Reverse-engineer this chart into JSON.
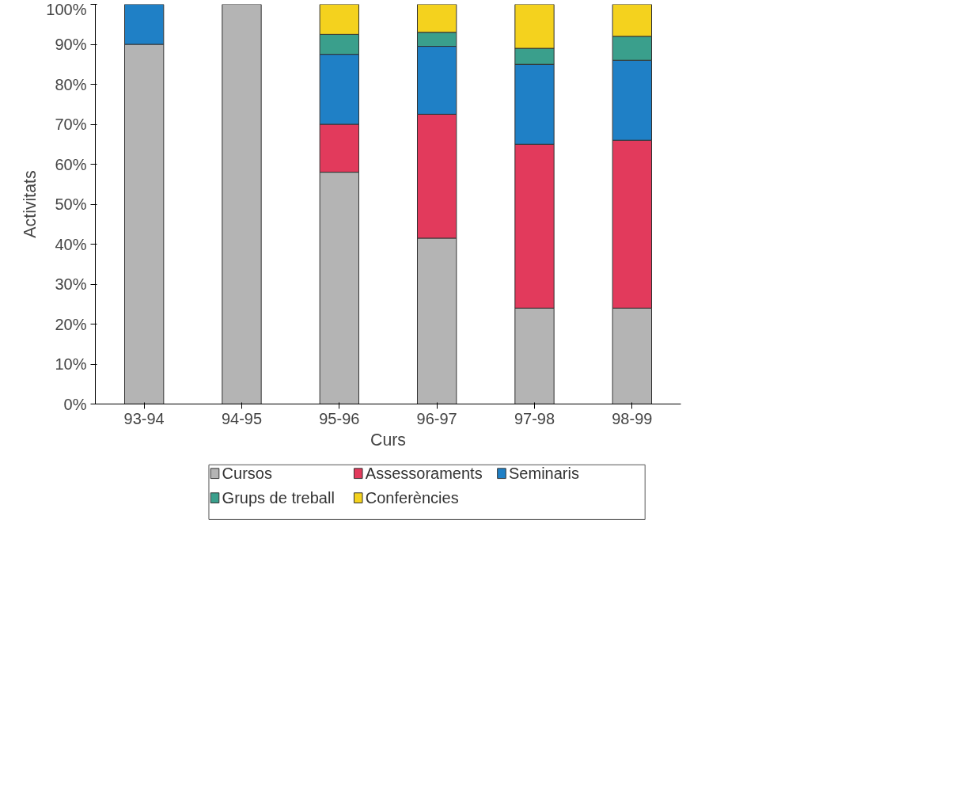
{
  "chart_data": {
    "type": "bar",
    "stacked": true,
    "xlabel": "Curs",
    "ylabel": "Activitats",
    "categories": [
      "93-94",
      "94-95",
      "95-96",
      "96-97",
      "97-98",
      "98-99"
    ],
    "series": [
      {
        "name": "Cursos",
        "color": "#b4b4b4",
        "values": [
          0.9,
          1,
          0.58,
          0.415,
          0.24,
          0.24
        ]
      },
      {
        "name": "Assessoraments",
        "color": "#e23a5c",
        "values": [
          null,
          null,
          0.12,
          0.31,
          0.41,
          0.42
        ]
      },
      {
        "name": "Seminaris",
        "color": "#1f80c6",
        "values": [
          0.1,
          null,
          0.175,
          0.17,
          0.2,
          0.2
        ]
      },
      {
        "name": "Grups de treball",
        "color": "#3a9f8c",
        "values": [
          null,
          null,
          0.05,
          0.035,
          0.04,
          0.06
        ]
      },
      {
        "name": "Conferències",
        "color": "#f4d21e",
        "values": [
          null,
          null,
          0.075,
          0.07,
          0.11,
          0.08
        ]
      }
    ],
    "ylim": [
      0,
      1
    ],
    "yticks": [
      {
        "value": 0,
        "label": "0%"
      },
      {
        "value": 0.1,
        "label": "10%"
      },
      {
        "value": 0.2,
        "label": "20%"
      },
      {
        "value": 0.3,
        "label": "30%"
      },
      {
        "value": 0.4,
        "label": "40%"
      },
      {
        "value": 0.5,
        "label": "50%"
      },
      {
        "value": 0.6,
        "label": "60%"
      },
      {
        "value": 0.7,
        "label": "70%"
      },
      {
        "value": 0.8,
        "label": "80%"
      },
      {
        "value": 0.9,
        "label": "90%"
      },
      {
        "value": 1,
        "label": "100%"
      }
    ],
    "grid": false,
    "legend": "bottom"
  }
}
